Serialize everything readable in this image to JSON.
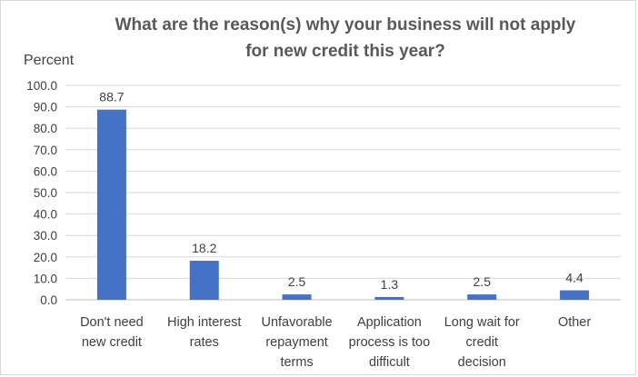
{
  "chart_data": {
    "type": "bar",
    "title_lines": [
      "What are the reason(s) why your business will not apply",
      "for new credit this year?"
    ],
    "ylabel": "Percent",
    "ylim": [
      0,
      100
    ],
    "yticks": [
      "0.0",
      "10.0",
      "20.0",
      "30.0",
      "40.0",
      "50.0",
      "60.0",
      "70.0",
      "80.0",
      "90.0",
      "100.0"
    ],
    "grid": true,
    "categories": [
      [
        "Don't need",
        "new credit"
      ],
      [
        "High interest",
        "rates"
      ],
      [
        "Unfavorable",
        "repayment",
        "terms"
      ],
      [
        "Application",
        "process is too",
        "difficult"
      ],
      [
        "Long wait for",
        "credit",
        "decision"
      ],
      [
        "Other"
      ]
    ],
    "values": [
      88.7,
      18.2,
      2.5,
      1.3,
      2.5,
      4.4
    ],
    "value_labels": [
      "88.7",
      "18.2",
      "2.5",
      "1.3",
      "2.5",
      "4.4"
    ],
    "bar_color": "#4472c4",
    "grid_color": "#d9d9d9"
  }
}
